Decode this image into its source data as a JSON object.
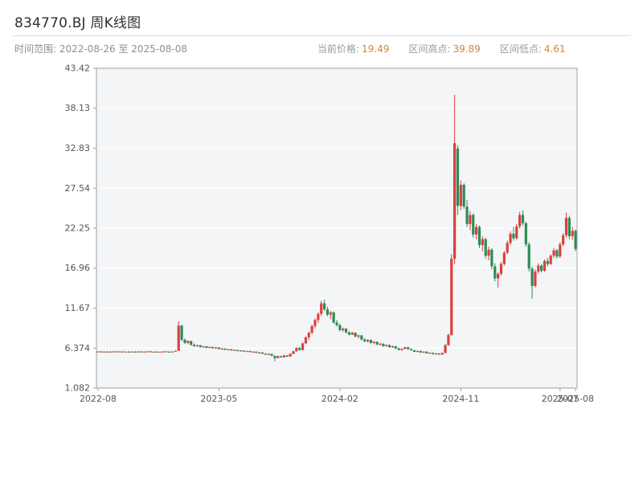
{
  "header": {
    "title": "834770.BJ 周K线图",
    "range_label": "时间范围:",
    "range_value": "2022-08-26 至 2025-08-08",
    "stats": [
      {
        "label": "当前价格:",
        "value": "19.49"
      },
      {
        "label": "区间高点:",
        "value": "39.89"
      },
      {
        "label": "区间低点:",
        "value": "4.61"
      }
    ]
  },
  "colors": {
    "up": "#d9413d",
    "down": "#2e8b57",
    "plot_bg": "#f4f5f6",
    "grid": "#ffffff",
    "axis_border": "#9aa0a6",
    "tick_text": "#555555"
  },
  "chart_data": {
    "type": "candlestick",
    "title": "834770.BJ 周K线图",
    "frequency": "weekly",
    "x_start": "2022-08-26",
    "x_end": "2025-08-08",
    "current_price": 19.49,
    "range_high": 39.89,
    "range_low": 4.61,
    "ylim": [
      1.082,
      43.42
    ],
    "y_ticks": [
      "43.42",
      "38.13",
      "32.83",
      "27.54",
      "22.25",
      "16.96",
      "11.67",
      "6.374",
      "1.082"
    ],
    "x_ticks": [
      {
        "label": "2022-08",
        "index": 0
      },
      {
        "label": "2023-05",
        "index": 39
      },
      {
        "label": "2024-02",
        "index": 78
      },
      {
        "label": "2024-11",
        "index": 117
      },
      {
        "label": "2025-07",
        "index": 149
      },
      {
        "label": "2025-08",
        "index": 154
      }
    ],
    "candles": [
      [
        5.9,
        5.95,
        5.85,
        5.92
      ],
      [
        5.92,
        5.96,
        5.86,
        5.88
      ],
      [
        5.88,
        5.94,
        5.84,
        5.91
      ],
      [
        5.91,
        5.95,
        5.85,
        5.87
      ],
      [
        5.87,
        5.93,
        5.83,
        5.9
      ],
      [
        5.9,
        5.96,
        5.86,
        5.93
      ],
      [
        5.93,
        5.97,
        5.87,
        5.89
      ],
      [
        5.89,
        5.95,
        5.85,
        5.92
      ],
      [
        5.92,
        5.94,
        5.84,
        5.86
      ],
      [
        5.86,
        5.92,
        5.82,
        5.9
      ],
      [
        5.9,
        5.94,
        5.84,
        5.87
      ],
      [
        5.87,
        5.93,
        5.83,
        5.91
      ],
      [
        5.91,
        5.95,
        5.85,
        5.88
      ],
      [
        5.88,
        5.94,
        5.84,
        5.92
      ],
      [
        5.92,
        5.96,
        5.86,
        5.89
      ],
      [
        5.89,
        5.93,
        5.83,
        5.91
      ],
      [
        5.91,
        5.97,
        5.87,
        5.94
      ],
      [
        5.94,
        5.96,
        5.86,
        5.88
      ],
      [
        5.88,
        5.92,
        5.82,
        5.9
      ],
      [
        5.9,
        5.95,
        5.85,
        5.87
      ],
      [
        5.87,
        5.91,
        5.81,
        5.89
      ],
      [
        5.89,
        5.95,
        5.85,
        5.93
      ],
      [
        5.93,
        5.97,
        5.87,
        5.9
      ],
      [
        5.9,
        5.94,
        5.84,
        5.88
      ],
      [
        5.88,
        5.94,
        5.84,
        5.92
      ],
      [
        5.92,
        6.05,
        5.88,
        6.02
      ],
      [
        6.02,
        9.9,
        5.98,
        9.35
      ],
      [
        9.35,
        9.45,
        7.3,
        7.45
      ],
      [
        7.45,
        7.65,
        6.95,
        7.05
      ],
      [
        7.05,
        7.4,
        6.9,
        7.3
      ],
      [
        7.3,
        7.35,
        6.7,
        6.8
      ],
      [
        6.8,
        7.0,
        6.55,
        6.62
      ],
      [
        6.62,
        6.8,
        6.55,
        6.75
      ],
      [
        6.75,
        6.78,
        6.45,
        6.5
      ],
      [
        6.5,
        6.66,
        6.42,
        6.6
      ],
      [
        6.6,
        6.64,
        6.35,
        6.4
      ],
      [
        6.4,
        6.58,
        6.36,
        6.52
      ],
      [
        6.52,
        6.56,
        6.3,
        6.35
      ],
      [
        6.35,
        6.5,
        6.28,
        6.45
      ],
      [
        6.45,
        6.48,
        6.2,
        6.25
      ],
      [
        6.25,
        6.38,
        6.15,
        6.32
      ],
      [
        6.32,
        6.35,
        6.1,
        6.15
      ],
      [
        6.15,
        6.28,
        6.08,
        6.22
      ],
      [
        6.22,
        6.25,
        6.02,
        6.06
      ],
      [
        6.06,
        6.18,
        6.0,
        6.12
      ],
      [
        6.12,
        6.15,
        5.95,
        5.98
      ],
      [
        5.98,
        6.1,
        5.92,
        6.05
      ],
      [
        6.05,
        6.08,
        5.88,
        5.92
      ],
      [
        5.92,
        6.02,
        5.86,
        5.98
      ],
      [
        5.98,
        6.0,
        5.8,
        5.84
      ],
      [
        5.84,
        5.95,
        5.78,
        5.9
      ],
      [
        5.9,
        5.92,
        5.7,
        5.74
      ],
      [
        5.74,
        5.85,
        5.68,
        5.8
      ],
      [
        5.8,
        5.82,
        5.58,
        5.62
      ],
      [
        5.62,
        5.72,
        5.52,
        5.56
      ],
      [
        5.56,
        5.66,
        5.45,
        5.6
      ],
      [
        5.6,
        5.62,
        5.3,
        5.35
      ],
      [
        5.35,
        5.4,
        4.61,
        5.05
      ],
      [
        5.05,
        5.35,
        5.0,
        5.3
      ],
      [
        5.3,
        5.34,
        5.1,
        5.15
      ],
      [
        5.15,
        5.45,
        5.12,
        5.4
      ],
      [
        5.4,
        5.44,
        5.2,
        5.25
      ],
      [
        5.25,
        5.65,
        5.22,
        5.6
      ],
      [
        5.6,
        6.0,
        5.55,
        5.95
      ],
      [
        5.95,
        6.45,
        5.9,
        6.38
      ],
      [
        6.38,
        6.5,
        6.05,
        6.12
      ],
      [
        6.12,
        7.1,
        6.08,
        7.0
      ],
      [
        7.0,
        7.9,
        6.9,
        7.8
      ],
      [
        7.8,
        8.55,
        7.45,
        8.4
      ],
      [
        8.4,
        9.45,
        8.2,
        9.3
      ],
      [
        9.3,
        10.3,
        8.95,
        10.1
      ],
      [
        10.1,
        11.1,
        9.7,
        10.9
      ],
      [
        10.9,
        12.65,
        10.6,
        12.3
      ],
      [
        12.3,
        12.75,
        11.3,
        11.5
      ],
      [
        11.5,
        11.85,
        10.6,
        10.8
      ],
      [
        10.8,
        11.3,
        10.2,
        11.1
      ],
      [
        11.1,
        11.2,
        9.6,
        9.75
      ],
      [
        9.75,
        10.1,
        9.2,
        9.4
      ],
      [
        9.4,
        9.6,
        8.6,
        8.75
      ],
      [
        8.75,
        9.1,
        8.5,
        8.95
      ],
      [
        8.95,
        9.0,
        8.3,
        8.45
      ],
      [
        8.45,
        8.6,
        8.05,
        8.15
      ],
      [
        8.15,
        8.5,
        8.1,
        8.4
      ],
      [
        8.4,
        8.45,
        7.8,
        7.9
      ],
      [
        7.9,
        8.15,
        7.65,
        8.05
      ],
      [
        8.05,
        8.1,
        7.4,
        7.5
      ],
      [
        7.5,
        7.7,
        7.15,
        7.25
      ],
      [
        7.25,
        7.55,
        7.1,
        7.45
      ],
      [
        7.45,
        7.5,
        6.95,
        7.05
      ],
      [
        7.05,
        7.3,
        6.9,
        7.2
      ],
      [
        7.2,
        7.25,
        6.75,
        6.85
      ],
      [
        6.85,
        7.05,
        6.7,
        6.95
      ],
      [
        6.95,
        7.0,
        6.55,
        6.62
      ],
      [
        6.62,
        6.85,
        6.55,
        6.78
      ],
      [
        6.78,
        6.82,
        6.4,
        6.48
      ],
      [
        6.48,
        6.7,
        6.4,
        6.62
      ],
      [
        6.62,
        6.65,
        6.25,
        6.32
      ],
      [
        6.32,
        6.45,
        6.05,
        6.12
      ],
      [
        6.12,
        6.35,
        6.02,
        6.28
      ],
      [
        6.28,
        6.55,
        6.2,
        6.48
      ],
      [
        6.48,
        6.52,
        6.15,
        6.22
      ],
      [
        6.22,
        6.35,
        6.0,
        6.08
      ],
      [
        6.08,
        6.12,
        5.82,
        5.88
      ],
      [
        5.88,
        6.05,
        5.8,
        6.0
      ],
      [
        6.0,
        6.02,
        5.72,
        5.78
      ],
      [
        5.78,
        5.95,
        5.7,
        5.9
      ],
      [
        5.9,
        5.92,
        5.62,
        5.68
      ],
      [
        5.68,
        5.8,
        5.58,
        5.75
      ],
      [
        5.75,
        5.78,
        5.52,
        5.58
      ],
      [
        5.58,
        5.7,
        5.5,
        5.66
      ],
      [
        5.66,
        5.68,
        5.48,
        5.52
      ],
      [
        5.52,
        5.78,
        5.48,
        5.72
      ],
      [
        5.72,
        6.9,
        5.68,
        6.75
      ],
      [
        6.75,
        8.3,
        6.7,
        8.1
      ],
      [
        8.1,
        18.8,
        8.0,
        18.2
      ],
      [
        18.2,
        39.89,
        17.5,
        33.5
      ],
      [
        32.8,
        33.2,
        24.0,
        25.2
      ],
      [
        25.2,
        28.6,
        24.6,
        28.0
      ],
      [
        28.0,
        28.2,
        24.8,
        25.1
      ],
      [
        25.1,
        26.0,
        22.4,
        22.8
      ],
      [
        22.8,
        24.5,
        22.0,
        24.0
      ],
      [
        24.0,
        24.2,
        21.0,
        21.4
      ],
      [
        21.4,
        22.8,
        20.8,
        22.4
      ],
      [
        22.4,
        22.6,
        19.6,
        20.0
      ],
      [
        20.0,
        21.2,
        19.2,
        20.8
      ],
      [
        20.8,
        21.0,
        18.2,
        18.6
      ],
      [
        18.6,
        19.8,
        18.0,
        19.4
      ],
      [
        19.4,
        19.6,
        16.8,
        17.2
      ],
      [
        17.2,
        17.6,
        15.2,
        15.6
      ],
      [
        15.6,
        16.4,
        14.4,
        16.2
      ],
      [
        16.2,
        17.8,
        16.0,
        17.5
      ],
      [
        17.5,
        19.2,
        17.3,
        19.0
      ],
      [
        19.0,
        20.6,
        18.8,
        20.3
      ],
      [
        20.3,
        21.8,
        20.0,
        21.5
      ],
      [
        21.5,
        22.4,
        20.6,
        20.9
      ],
      [
        20.9,
        22.8,
        20.7,
        22.5
      ],
      [
        22.5,
        24.4,
        22.2,
        24.0
      ],
      [
        24.0,
        24.6,
        22.6,
        22.9
      ],
      [
        22.9,
        23.1,
        19.8,
        20.1
      ],
      [
        20.1,
        20.4,
        16.5,
        16.9
      ],
      [
        16.9,
        17.2,
        12.9,
        14.6
      ],
      [
        14.6,
        16.8,
        14.4,
        16.5
      ],
      [
        16.5,
        17.6,
        16.2,
        17.3
      ],
      [
        17.3,
        17.5,
        16.4,
        16.6
      ],
      [
        16.6,
        18.1,
        16.5,
        17.9
      ],
      [
        17.9,
        18.3,
        17.2,
        17.5
      ],
      [
        17.5,
        18.8,
        17.4,
        18.6
      ],
      [
        18.6,
        19.6,
        18.3,
        19.3
      ],
      [
        19.3,
        19.5,
        18.2,
        18.5
      ],
      [
        18.5,
        20.4,
        18.3,
        20.1
      ],
      [
        20.1,
        21.6,
        19.9,
        21.3
      ],
      [
        21.3,
        24.3,
        21.0,
        23.6
      ],
      [
        23.6,
        23.9,
        20.8,
        21.2
      ],
      [
        21.2,
        22.4,
        20.7,
        21.9
      ],
      [
        21.9,
        22.1,
        19.2,
        19.49
      ]
    ]
  }
}
